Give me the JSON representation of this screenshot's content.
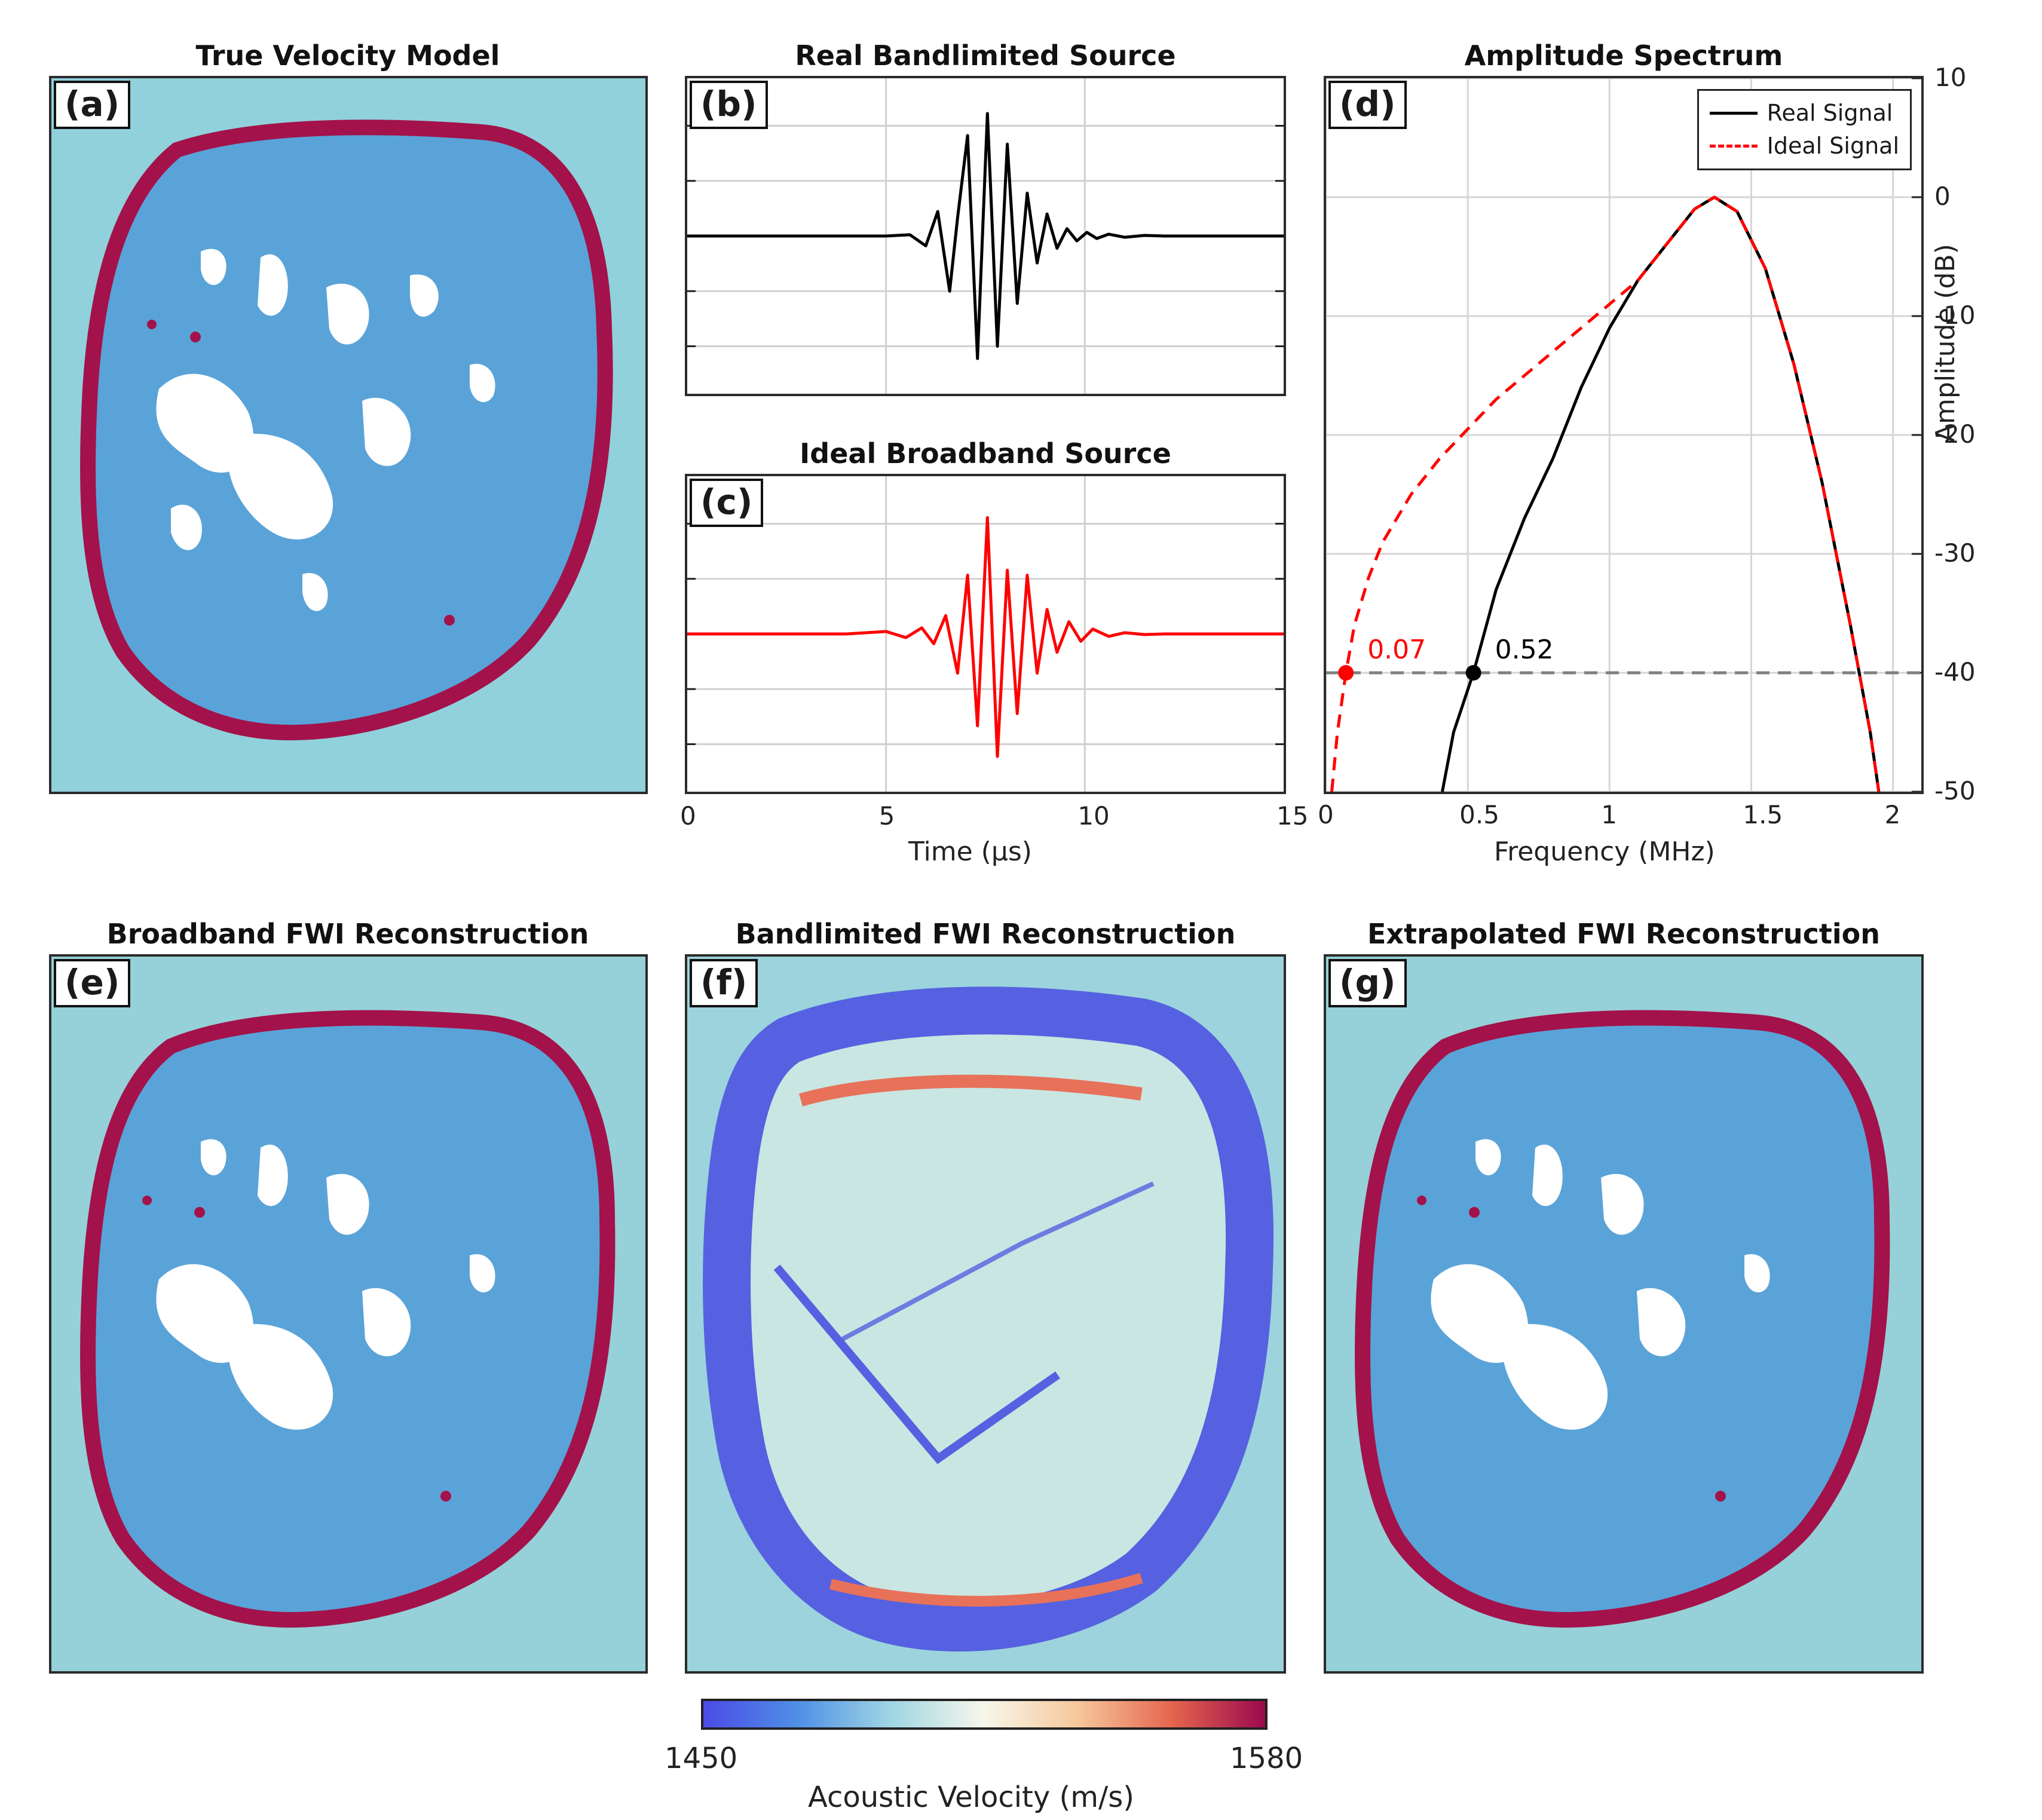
{
  "titles": {
    "a": "True Velocity Model",
    "b": "Real Bandlimited Source",
    "c": "Ideal Broadband Source",
    "d": "Amplitude Spectrum",
    "e": "Broadband FWI Reconstruction",
    "f": "Bandlimited FWI Reconstruction",
    "g": "Extrapolated FWI Reconstruction"
  },
  "letters": {
    "a": "(a)",
    "b": "(b)",
    "c": "(c)",
    "d": "(d)",
    "e": "(e)",
    "f": "(f)",
    "g": "(g)"
  },
  "colors": {
    "real": "#000000",
    "ideal": "#ff0000",
    "background": "#90d1dc",
    "skin": "#a3124a",
    "tissue": "#5aa3d8",
    "fat": "#ffffff",
    "ref_line": "#808080"
  },
  "colorbar": {
    "min_label": "1450",
    "max_label": "1580",
    "label": "Acoustic Velocity (m/s)",
    "stops": [
      "#4b4be6",
      "#4f8fe6",
      "#9fd6e3",
      "#f7f7ea",
      "#f6c79c",
      "#e5664e",
      "#9b0a4e"
    ]
  },
  "chart_data": [
    {
      "type": "line",
      "title": "Real Bandlimited Source",
      "xlabel": "",
      "ylabel": "",
      "xlim": [
        0,
        15
      ],
      "series": [
        {
          "name": "",
          "color": "#000000",
          "x": [
            0,
            5.0,
            5.6,
            6.0,
            6.3,
            6.6,
            6.8,
            7.05,
            7.3,
            7.55,
            7.8,
            8.05,
            8.3,
            8.55,
            8.8,
            9.05,
            9.3,
            9.55,
            9.8,
            10.05,
            10.3,
            10.6,
            11.0,
            11.5,
            12.0,
            15.0
          ],
          "y": [
            0,
            0,
            0.01,
            -0.08,
            0.2,
            -0.45,
            0.15,
            0.82,
            -1.0,
            1.0,
            -0.9,
            0.75,
            -0.55,
            0.35,
            -0.22,
            0.18,
            -0.1,
            0.06,
            -0.04,
            0.03,
            -0.02,
            0.015,
            -0.01,
            0.005,
            0,
            0
          ]
        }
      ]
    },
    {
      "type": "line",
      "title": "Ideal Broadband Source",
      "xlabel": "Time (μs)",
      "ylabel": "",
      "xlim": [
        0,
        15
      ],
      "xticks": [
        0,
        5,
        10,
        15
      ],
      "series": [
        {
          "name": "",
          "color": "#ff0000",
          "x": [
            0,
            4.0,
            5.0,
            5.5,
            5.9,
            6.2,
            6.5,
            6.8,
            7.05,
            7.3,
            7.55,
            7.8,
            8.05,
            8.3,
            8.55,
            8.8,
            9.05,
            9.3,
            9.6,
            9.9,
            10.2,
            10.6,
            11.0,
            11.5,
            12.0,
            15.0
          ],
          "y": [
            0,
            0,
            0.02,
            -0.03,
            0.05,
            -0.08,
            0.15,
            -0.32,
            0.48,
            -0.75,
            0.95,
            -1.0,
            0.52,
            -0.65,
            0.48,
            -0.32,
            0.2,
            -0.15,
            0.1,
            -0.06,
            0.04,
            -0.02,
            0.01,
            -0.005,
            0,
            0
          ]
        }
      ]
    },
    {
      "type": "line",
      "title": "Amplitude Spectrum",
      "xlabel": "Frequency (MHz)",
      "ylabel": "Amplitude (dB)",
      "xlim": [
        0,
        2.1
      ],
      "ylim": [
        -50,
        10
      ],
      "xticks": [
        0,
        0.5,
        1,
        1.5,
        2
      ],
      "yticks": [
        10,
        0,
        -10,
        -20,
        -30,
        -40,
        -50
      ],
      "legend": "top-right",
      "reference_line_y": -40,
      "series": [
        {
          "name": "Real Signal",
          "color": "#000000",
          "dash": "solid",
          "x": [
            0.41,
            0.45,
            0.52,
            0.6,
            0.7,
            0.8,
            0.9,
            1.0,
            1.1,
            1.2,
            1.3,
            1.37,
            1.45,
            1.55,
            1.65,
            1.75,
            1.85,
            1.92,
            1.95
          ],
          "y": [
            -50,
            -45,
            -40,
            -33,
            -27,
            -22,
            -16,
            -11,
            -7,
            -4,
            -1,
            0,
            -1.2,
            -6,
            -14,
            -24,
            -36,
            -45,
            -50
          ]
        },
        {
          "name": "Ideal Signal",
          "color": "#ff0000",
          "dash": "dashed",
          "x": [
            0.02,
            0.04,
            0.07,
            0.1,
            0.15,
            0.2,
            0.3,
            0.4,
            0.5,
            0.6,
            0.7,
            0.8,
            0.9,
            1.0,
            1.1,
            1.2,
            1.3,
            1.37,
            1.45,
            1.55,
            1.65,
            1.75,
            1.85,
            1.92,
            1.95
          ],
          "y": [
            -50,
            -45,
            -40,
            -36,
            -32,
            -29,
            -25,
            -22,
            -19.5,
            -17,
            -15,
            -13,
            -11,
            -9,
            -7,
            -4,
            -1,
            0,
            -1.2,
            -6,
            -14,
            -24,
            -36,
            -45,
            -50
          ]
        }
      ],
      "annotations": [
        {
          "text": "0.07",
          "x": 0.07,
          "y": -40,
          "color": "#ff0000"
        },
        {
          "text": "0.52",
          "x": 0.52,
          "y": -40,
          "color": "#000000"
        }
      ]
    }
  ]
}
